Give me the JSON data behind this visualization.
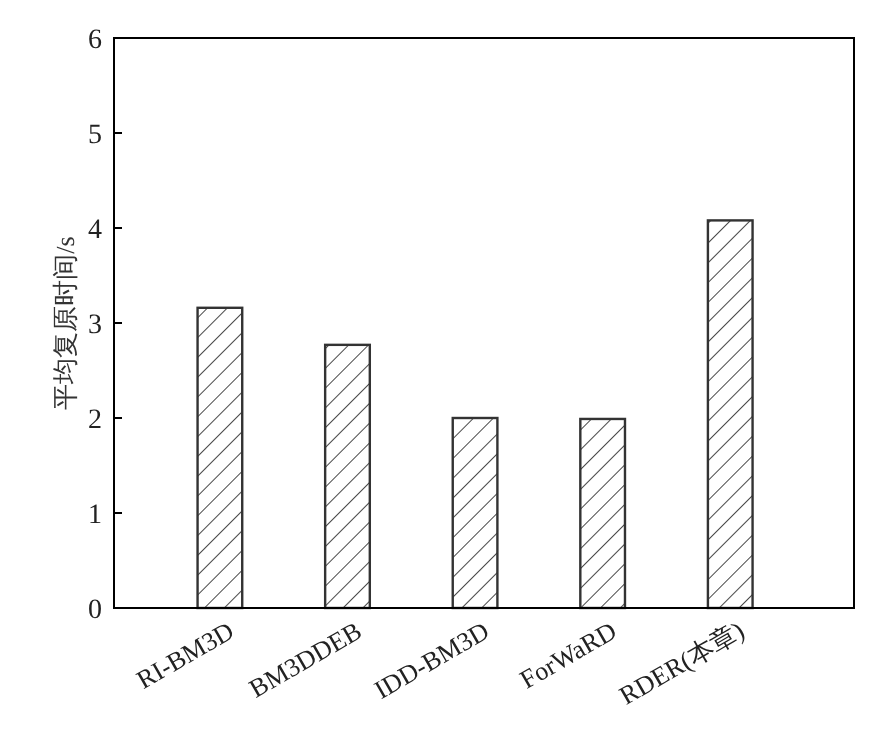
{
  "chart_data": {
    "type": "bar",
    "ylabel": "平均复原时间/s",
    "categories": [
      "RI-BM3D",
      "BM3DDEB",
      "IDD-BM3D",
      "ForWaRD",
      "RDER(本章)"
    ],
    "values": [
      3.16,
      2.77,
      2.0,
      1.99,
      4.08
    ],
    "color": "#333333",
    "ylim": [
      0,
      6
    ],
    "yticks": [
      0,
      1,
      2,
      3,
      4,
      5,
      6
    ]
  }
}
